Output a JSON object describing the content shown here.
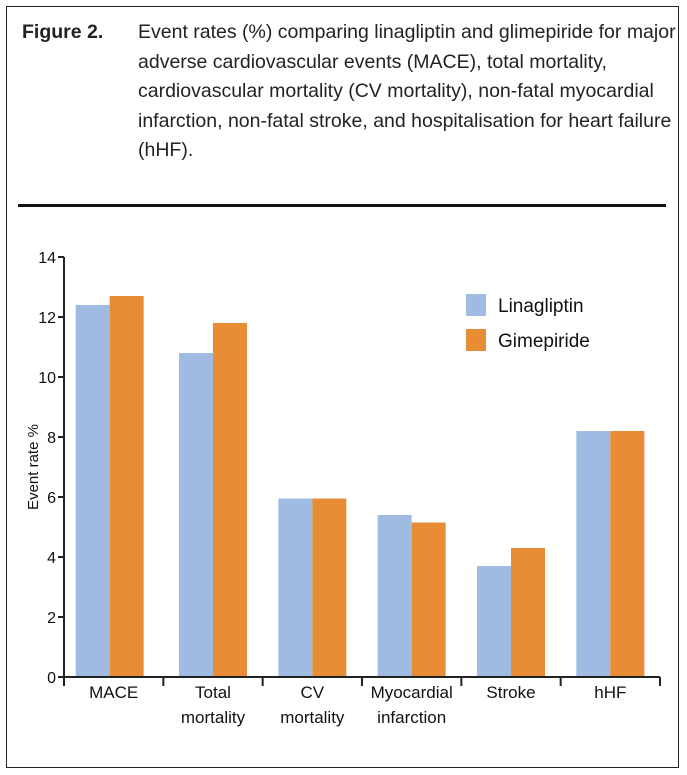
{
  "caption": {
    "label": "Figure 2.",
    "text": "Event rates (%) comparing linagliptin and glimepiride for major adverse cardiovascular events (MACE), total mortality, cardiovascular mortality (CV mortality), non-fatal myocardial infarction, non-fatal stroke, and hospitalisation for heart failure (hHF)."
  },
  "chart_data": {
    "type": "bar",
    "categories": [
      [
        "MACE"
      ],
      [
        "Total",
        "mortality"
      ],
      [
        "CV",
        "mortality"
      ],
      [
        "Myocardial",
        "infarction"
      ],
      [
        "Stroke"
      ],
      [
        "hHF"
      ]
    ],
    "series": [
      {
        "name": "Linagliptin",
        "color": "#a0bbe2",
        "values": [
          12.4,
          10.8,
          5.95,
          5.4,
          3.7,
          8.2
        ]
      },
      {
        "name": "Gimepiride",
        "color": "#e88c35",
        "values": [
          12.7,
          11.8,
          5.95,
          5.15,
          4.3,
          8.2
        ]
      }
    ],
    "ylabel": "Event rate %",
    "xlabel": "",
    "ylim": [
      0,
      14
    ],
    "yticks": [
      0,
      2,
      4,
      6,
      8,
      10,
      12,
      14
    ],
    "legend": "top-right",
    "grid": false
  }
}
